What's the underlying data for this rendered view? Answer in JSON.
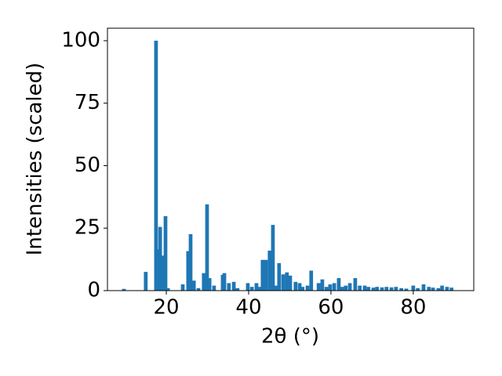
{
  "chart_data": {
    "type": "bar",
    "xlabel": "2θ (°)",
    "ylabel": "Intensities (scaled)",
    "color": "#1f77b4",
    "x": [
      9.7,
      15.0,
      17.5,
      17.9,
      18.5,
      19.0,
      19.8,
      20.4,
      24.0,
      25.3,
      25.9,
      26.7,
      27.8,
      29.1,
      29.9,
      30.5,
      31.6,
      33.7,
      34.1,
      35.2,
      36.4,
      37.3,
      39.8,
      40.8,
      41.9,
      42.7,
      43.4,
      44.2,
      45.1,
      45.9,
      46.7,
      47.4,
      48.4,
      49.3,
      50.1,
      51.4,
      52.4,
      53.1,
      54.3,
      55.2,
      57.0,
      57.9,
      58.9,
      59.8,
      60.8,
      61.9,
      62.7,
      63.6,
      64.6,
      65.9,
      67.0,
      68.2,
      69.1,
      70.3,
      71.2,
      72.4,
      73.5,
      74.7,
      75.8,
      77.1,
      78.3,
      80.0,
      81.1,
      82.5,
      83.8,
      84.8,
      86.1,
      87.0,
      88.2,
      89.3
    ],
    "values": [
      0.7,
      7.5,
      100,
      16.5,
      25.5,
      14,
      29.8,
      1,
      2.5,
      15.8,
      22.6,
      4,
      1,
      7,
      34.5,
      5,
      2,
      6.3,
      7,
      3,
      3.5,
      1,
      3,
      1.5,
      3,
      1.5,
      12.3,
      12.3,
      16,
      26.3,
      2,
      11,
      6.5,
      7.3,
      6,
      3.5,
      3,
      1.5,
      2,
      8,
      3,
      4.5,
      1.5,
      2.5,
      3,
      5,
      1.5,
      2,
      3,
      5,
      2,
      2,
      1.5,
      1.2,
      1.5,
      1.3,
      1.5,
      1.3,
      1.5,
      1,
      0.8,
      2,
      1,
      2.5,
      1.5,
      1.2,
      1,
      2,
      1.5,
      1.2
    ],
    "xlim": [
      5.7,
      94.7
    ],
    "ylim": [
      0,
      105
    ],
    "xticks": [
      20,
      40,
      60,
      80
    ],
    "yticks": [
      0,
      25,
      50,
      75,
      100
    ]
  }
}
